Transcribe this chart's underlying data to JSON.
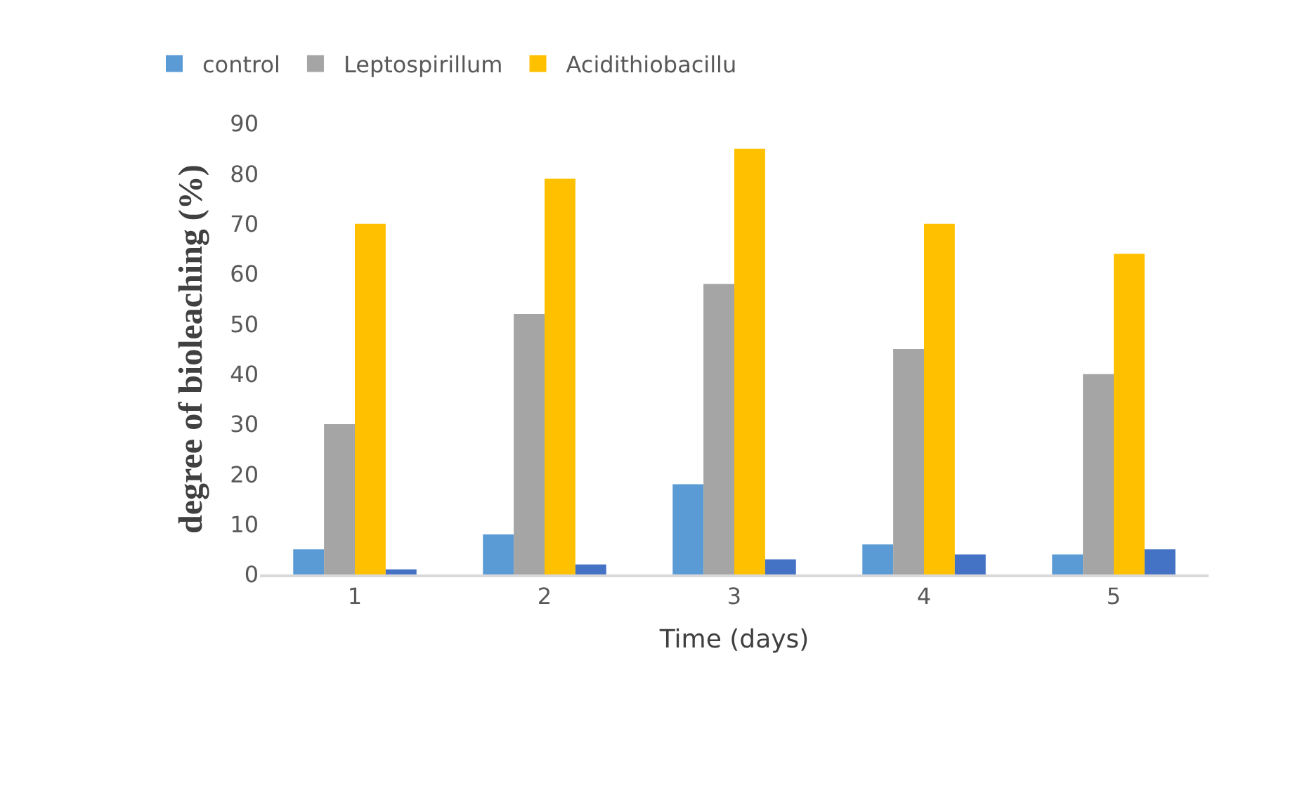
{
  "chart_data": {
    "type": "bar",
    "xlabel": "Time (days)",
    "ylabel": "degree of bioleaching (%)",
    "categories": [
      "1",
      "2",
      "3",
      "4",
      "5"
    ],
    "series": [
      {
        "name": "control",
        "color": "#5b9bd5",
        "values": [
          5,
          8,
          18,
          6,
          4
        ]
      },
      {
        "name": "Leptospirillum",
        "color": "#a5a5a5",
        "values": [
          30,
          52,
          58,
          45,
          40
        ]
      },
      {
        "name": "Acidithiobacillu",
        "color": "#ffc000",
        "values": [
          70,
          79,
          85,
          70,
          64
        ]
      },
      {
        "color": "#4472c4",
        "values": [
          1,
          2,
          3,
          4,
          5
        ]
      }
    ],
    "ylim": [
      0,
      90
    ],
    "yticks": [
      0,
      10,
      20,
      30,
      40,
      50,
      60,
      70,
      80,
      90
    ],
    "legend": "top left"
  }
}
